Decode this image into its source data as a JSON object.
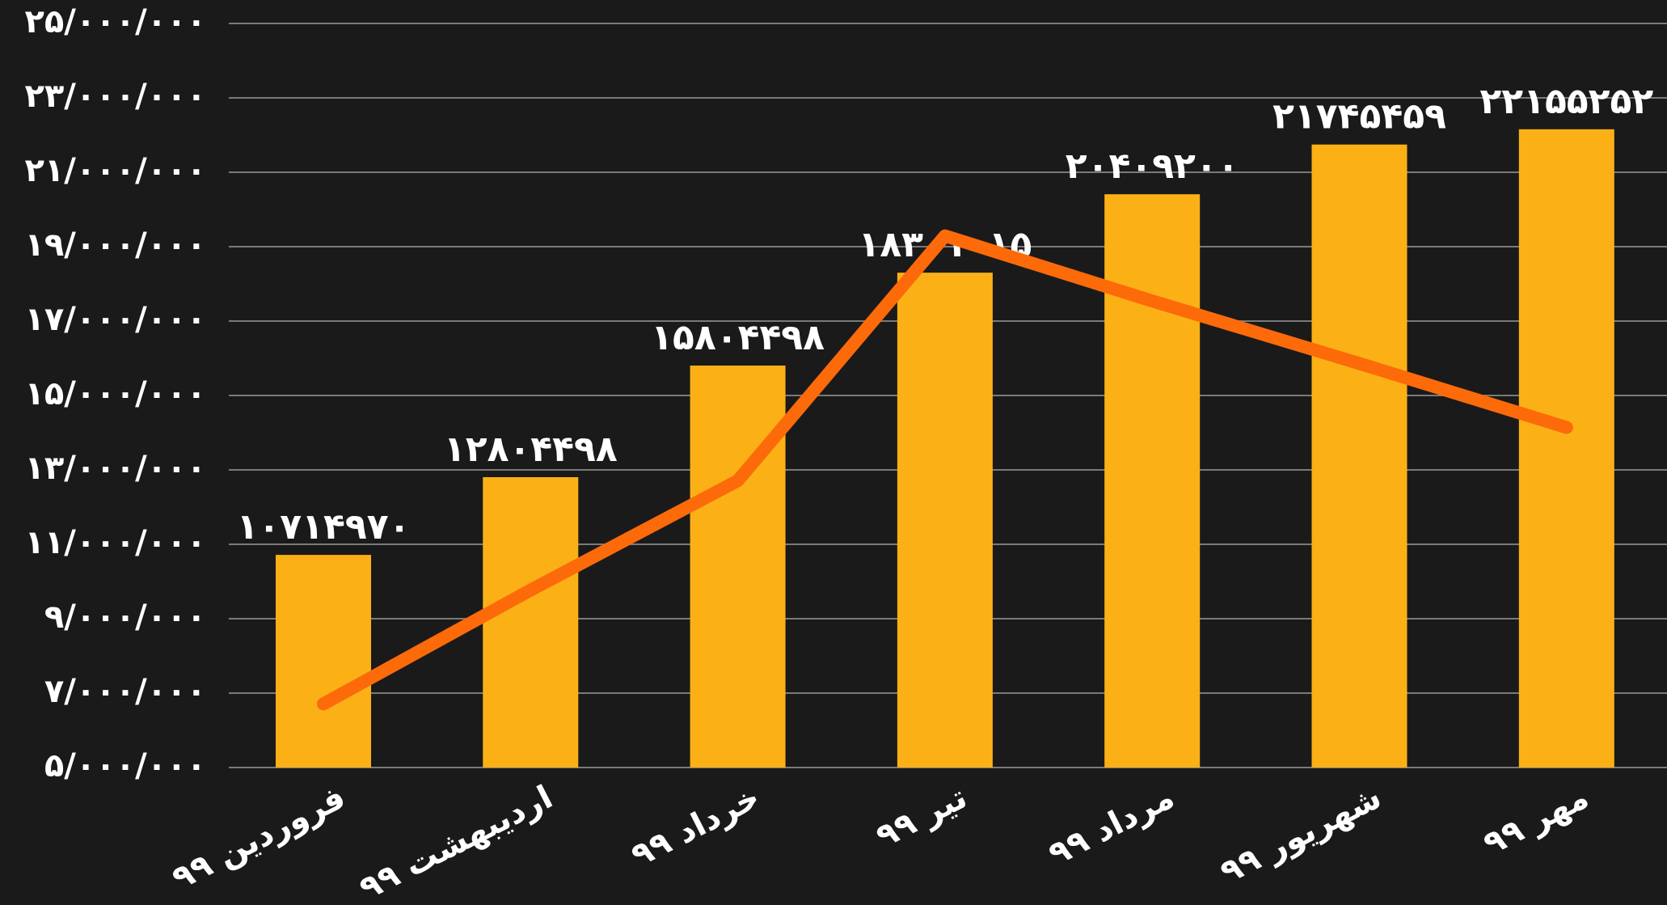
{
  "chart_data": {
    "type": "bar_line",
    "categories": [
      "فروردین ۹۹",
      "اردیبهشت ۹۹",
      "خرداد ۹۹",
      "تیر ۹۹",
      "مرداد ۹۹",
      "شهریور ۹۹",
      "مهر ۹۹"
    ],
    "series": [
      {
        "type": "bar",
        "color": "#fbb116",
        "values": [
          10714970,
          12804498,
          15804498,
          18301015,
          20409200,
          21745459,
          22155252
        ],
        "value_labels": [
          "۱۰۷۱۴۹۷۰",
          "۱۲۸۰۴۴۹۸",
          "۱۵۸۰۴۴۹۸",
          "۱۸۳۰۱۰۱۵",
          "۲۰۴۰۹۲۰۰",
          "۲۱۷۴۵۴۵۹",
          "۲۲۱۵۵۲۵۲"
        ]
      },
      {
        "type": "line",
        "color": "#fd6a0a",
        "values": [
          6710000,
          9770000,
          12710000,
          19290000,
          17540000,
          15860000,
          14140000
        ]
      }
    ],
    "ylim": [
      5000000,
      25000000
    ],
    "yticks": [
      {
        "value": 5000000,
        "label": "۵/۰۰۰/۰۰۰"
      },
      {
        "value": 7000000,
        "label": "۷/۰۰۰/۰۰۰"
      },
      {
        "value": 9000000,
        "label": "۹/۰۰۰/۰۰۰"
      },
      {
        "value": 11000000,
        "label": "۱۱/۰۰۰/۰۰۰"
      },
      {
        "value": 13000000,
        "label": "۱۳/۰۰۰/۰۰۰"
      },
      {
        "value": 15000000,
        "label": "۱۵/۰۰۰/۰۰۰"
      },
      {
        "value": 17000000,
        "label": "۱۷/۰۰۰/۰۰۰"
      },
      {
        "value": 19000000,
        "label": "۱۹/۰۰۰/۰۰۰"
      },
      {
        "value": 21000000,
        "label": "۲۱/۰۰۰/۰۰۰"
      },
      {
        "value": 23000000,
        "label": "۲۳/۰۰۰/۰۰۰"
      },
      {
        "value": 25000000,
        "label": "۲۵/۰۰۰/۰۰۰"
      }
    ],
    "grid": true
  }
}
